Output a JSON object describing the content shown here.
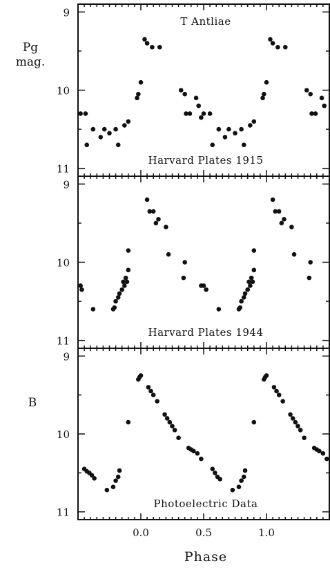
{
  "chart_data": [
    {
      "type": "scatter",
      "title": "T Antliae",
      "label": "Harvard Plates 1915",
      "ylabel": "Pg mag.",
      "ylabel_lines": [
        "Pg",
        "mag."
      ],
      "xlim": [
        -0.5,
        1.5
      ],
      "ylim": [
        8.9,
        11.1
      ],
      "y_inverted": true,
      "y_ticks": [
        9,
        10,
        11
      ],
      "points": [
        [
          -0.48,
          10.3
        ],
        [
          -0.44,
          10.3
        ],
        [
          -0.43,
          10.7
        ],
        [
          -0.38,
          10.5
        ],
        [
          -0.32,
          10.6
        ],
        [
          -0.29,
          10.5
        ],
        [
          -0.25,
          10.55
        ],
        [
          -0.2,
          10.5
        ],
        [
          -0.18,
          10.7
        ],
        [
          -0.13,
          10.45
        ],
        [
          -0.1,
          10.4
        ],
        [
          -0.03,
          10.1
        ],
        [
          -0.02,
          10.05
        ],
        [
          0.0,
          9.9
        ],
        [
          0.03,
          9.35
        ],
        [
          0.05,
          9.4
        ],
        [
          0.09,
          9.45
        ],
        [
          0.15,
          9.45
        ],
        [
          0.32,
          10.0
        ],
        [
          0.35,
          10.05
        ],
        [
          0.36,
          10.3
        ],
        [
          0.39,
          10.3
        ],
        [
          0.44,
          10.1
        ],
        [
          0.46,
          10.2
        ],
        [
          0.48,
          10.35
        ],
        [
          0.5,
          10.3
        ],
        [
          0.55,
          10.3
        ],
        [
          0.57,
          10.7
        ],
        [
          0.62,
          10.5
        ],
        [
          0.67,
          10.6
        ],
        [
          0.7,
          10.5
        ],
        [
          0.75,
          10.55
        ],
        [
          0.8,
          10.5
        ],
        [
          0.82,
          10.7
        ],
        [
          0.87,
          10.45
        ],
        [
          0.9,
          10.4
        ],
        [
          0.97,
          10.1
        ],
        [
          0.98,
          10.05
        ],
        [
          1.0,
          9.9
        ],
        [
          1.03,
          9.35
        ],
        [
          1.05,
          9.4
        ],
        [
          1.09,
          9.45
        ],
        [
          1.15,
          9.45
        ],
        [
          1.32,
          10.0
        ],
        [
          1.35,
          10.05
        ],
        [
          1.36,
          10.3
        ],
        [
          1.39,
          10.3
        ],
        [
          1.44,
          10.1
        ],
        [
          1.46,
          10.2
        ]
      ]
    },
    {
      "type": "scatter",
      "label": "Harvard Plates 1944",
      "ylabel": "",
      "xlim": [
        -0.5,
        1.5
      ],
      "ylim": [
        8.9,
        11.1
      ],
      "y_inverted": true,
      "y_ticks": [
        9,
        10,
        11
      ],
      "points": [
        [
          -0.48,
          10.3
        ],
        [
          -0.47,
          10.35
        ],
        [
          -0.38,
          10.6
        ],
        [
          -0.22,
          10.6
        ],
        [
          -0.21,
          10.58
        ],
        [
          -0.2,
          10.5
        ],
        [
          -0.18,
          10.45
        ],
        [
          -0.17,
          10.4
        ],
        [
          -0.15,
          10.35
        ],
        [
          -0.14,
          10.25
        ],
        [
          -0.12,
          10.2
        ],
        [
          -0.11,
          10.25
        ],
        [
          -0.1,
          10.1
        ],
        [
          -0.1,
          9.85
        ],
        [
          -0.13,
          10.3
        ],
        [
          0.05,
          9.2
        ],
        [
          0.07,
          9.35
        ],
        [
          0.1,
          9.35
        ],
        [
          0.12,
          9.5
        ],
        [
          0.14,
          9.45
        ],
        [
          0.2,
          9.55
        ],
        [
          0.22,
          9.9
        ],
        [
          0.34,
          10.2
        ],
        [
          0.35,
          10.0
        ],
        [
          0.48,
          10.3
        ],
        [
          0.5,
          10.3
        ],
        [
          0.52,
          10.35
        ],
        [
          0.62,
          10.6
        ],
        [
          0.78,
          10.6
        ],
        [
          0.79,
          10.58
        ],
        [
          0.8,
          10.5
        ],
        [
          0.82,
          10.45
        ],
        [
          0.83,
          10.4
        ],
        [
          0.85,
          10.35
        ],
        [
          0.86,
          10.25
        ],
        [
          0.88,
          10.2
        ],
        [
          0.89,
          10.25
        ],
        [
          0.9,
          10.1
        ],
        [
          0.9,
          9.85
        ],
        [
          0.87,
          10.3
        ],
        [
          1.05,
          9.2
        ],
        [
          1.07,
          9.35
        ],
        [
          1.1,
          9.35
        ],
        [
          1.12,
          9.5
        ],
        [
          1.14,
          9.45
        ],
        [
          1.2,
          9.55
        ],
        [
          1.22,
          9.9
        ],
        [
          1.34,
          10.2
        ],
        [
          1.35,
          10.0
        ]
      ]
    },
    {
      "type": "scatter",
      "label": "Photoelectric Data",
      "ylabel": "B",
      "xlabel": "Phase",
      "xlim": [
        -0.5,
        1.5
      ],
      "ylim": [
        8.9,
        11.1
      ],
      "y_inverted": true,
      "y_ticks": [
        9,
        10,
        11
      ],
      "x_ticks": [
        0.0,
        0.5,
        1.0
      ],
      "x_tick_labels": [
        "0.0",
        "0.5",
        "1.0"
      ],
      "points": [
        [
          -0.45,
          10.45
        ],
        [
          -0.43,
          10.48
        ],
        [
          -0.41,
          10.5
        ],
        [
          -0.39,
          10.53
        ],
        [
          -0.37,
          10.57
        ],
        [
          -0.27,
          10.72
        ],
        [
          -0.22,
          10.68
        ],
        [
          -0.2,
          10.6
        ],
        [
          -0.18,
          10.55
        ],
        [
          -0.17,
          10.47
        ],
        [
          -0.1,
          9.85
        ],
        [
          -0.02,
          9.3
        ],
        [
          -0.01,
          9.27
        ],
        [
          0.0,
          9.25
        ],
        [
          0.06,
          9.4
        ],
        [
          0.08,
          9.45
        ],
        [
          0.1,
          9.5
        ],
        [
          0.13,
          9.58
        ],
        [
          0.19,
          9.75
        ],
        [
          0.21,
          9.8
        ],
        [
          0.23,
          9.85
        ],
        [
          0.25,
          9.9
        ],
        [
          0.27,
          9.95
        ],
        [
          0.3,
          10.05
        ],
        [
          0.38,
          10.18
        ],
        [
          0.4,
          10.2
        ],
        [
          0.42,
          10.22
        ],
        [
          0.45,
          10.25
        ],
        [
          0.48,
          10.32
        ],
        [
          0.57,
          10.45
        ],
        [
          0.59,
          10.5
        ],
        [
          0.61,
          10.55
        ],
        [
          0.63,
          10.58
        ],
        [
          0.73,
          10.72
        ],
        [
          0.78,
          10.68
        ],
        [
          0.8,
          10.6
        ],
        [
          0.82,
          10.55
        ],
        [
          0.83,
          10.47
        ],
        [
          0.9,
          9.85
        ],
        [
          0.98,
          9.3
        ],
        [
          0.99,
          9.27
        ],
        [
          1.0,
          9.25
        ],
        [
          1.06,
          9.4
        ],
        [
          1.08,
          9.45
        ],
        [
          1.1,
          9.5
        ],
        [
          1.13,
          9.58
        ],
        [
          1.19,
          9.75
        ],
        [
          1.21,
          9.8
        ],
        [
          1.23,
          9.85
        ],
        [
          1.25,
          9.9
        ],
        [
          1.27,
          9.95
        ],
        [
          1.3,
          10.05
        ],
        [
          1.38,
          10.18
        ],
        [
          1.4,
          10.2
        ],
        [
          1.42,
          10.22
        ],
        [
          1.45,
          10.25
        ],
        [
          1.48,
          10.32
        ]
      ]
    }
  ]
}
